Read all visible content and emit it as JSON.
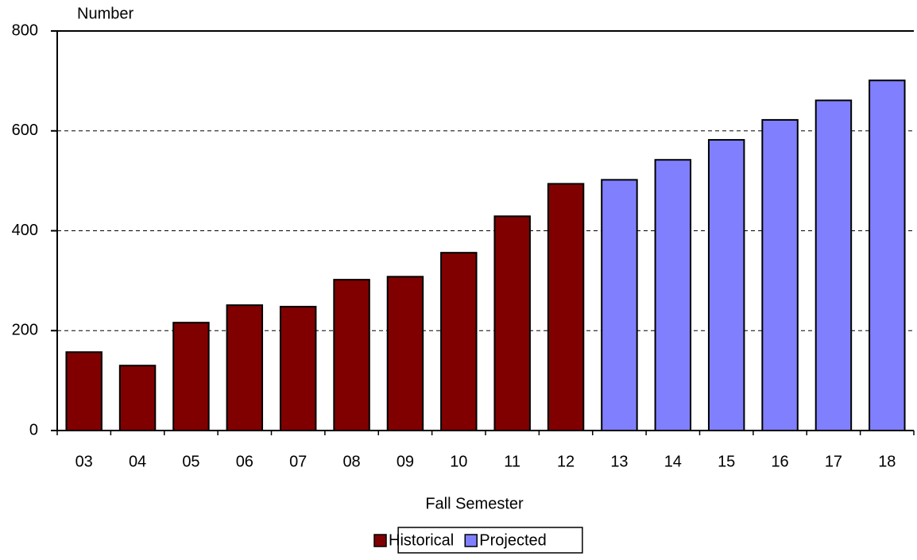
{
  "chart_data": {
    "type": "bar",
    "y_label": "Number",
    "x_label": "Fall Semester",
    "categories": [
      "03",
      "04",
      "05",
      "06",
      "07",
      "08",
      "09",
      "10",
      "11",
      "12",
      "13",
      "14",
      "15",
      "16",
      "17",
      "18"
    ],
    "series": [
      {
        "name": "Historical",
        "color": "#800000",
        "values": [
          157,
          130,
          216,
          251,
          248,
          302,
          308,
          356,
          429,
          494,
          null,
          null,
          null,
          null,
          null,
          null
        ]
      },
      {
        "name": "Projected",
        "color": "#8080ff",
        "values": [
          null,
          null,
          null,
          null,
          null,
          null,
          null,
          null,
          null,
          null,
          502,
          542,
          582,
          622,
          661,
          701
        ]
      }
    ],
    "ylim": [
      0,
      800
    ],
    "yticks": [
      0,
      200,
      400,
      600,
      800
    ],
    "grid": true,
    "legend": "bottom"
  }
}
